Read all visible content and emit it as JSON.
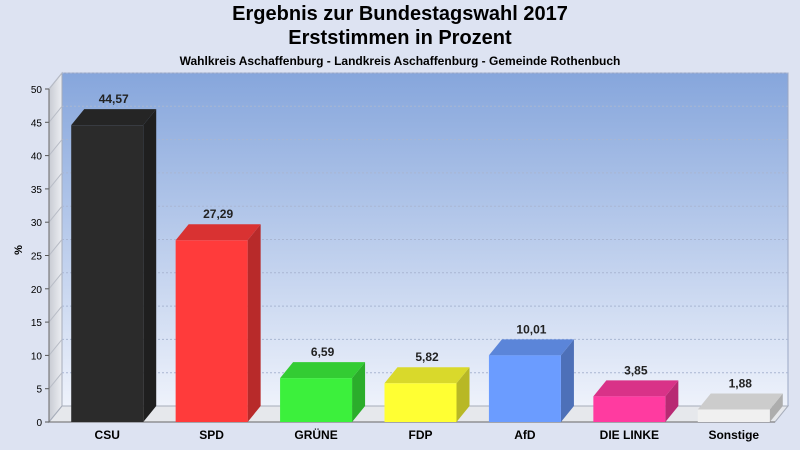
{
  "chart_data": {
    "type": "bar",
    "title": "Ergebnis zur Bundestagswahl 2017",
    "title2": "Erststimmen in Prozent",
    "subtitle": "Wahlkreis Aschaffenburg - Landkreis Aschaffenburg - Gemeinde Rothenbuch",
    "ylabel": "%",
    "ylim": [
      0,
      50
    ],
    "yticks": [
      "0",
      "5",
      "10",
      "15",
      "20",
      "25",
      "30",
      "35",
      "40",
      "45",
      "50"
    ],
    "categories": [
      "CSU",
      "SPD",
      "GRÜNE",
      "FDP",
      "AfD",
      "DIE LINKE",
      "Sonstige"
    ],
    "values": [
      44.57,
      27.29,
      6.59,
      5.82,
      10.01,
      3.85,
      1.88
    ],
    "value_labels": [
      "44,57",
      "27,29",
      "6,59",
      "5,82",
      "10,01",
      "3,85",
      "1,88"
    ],
    "colors": [
      "#2b2b2b",
      "#ff3b3b",
      "#3cf03c",
      "#ffff33",
      "#6b9cff",
      "#ff3ba0",
      "#f0f0f0"
    ],
    "grid": true
  }
}
